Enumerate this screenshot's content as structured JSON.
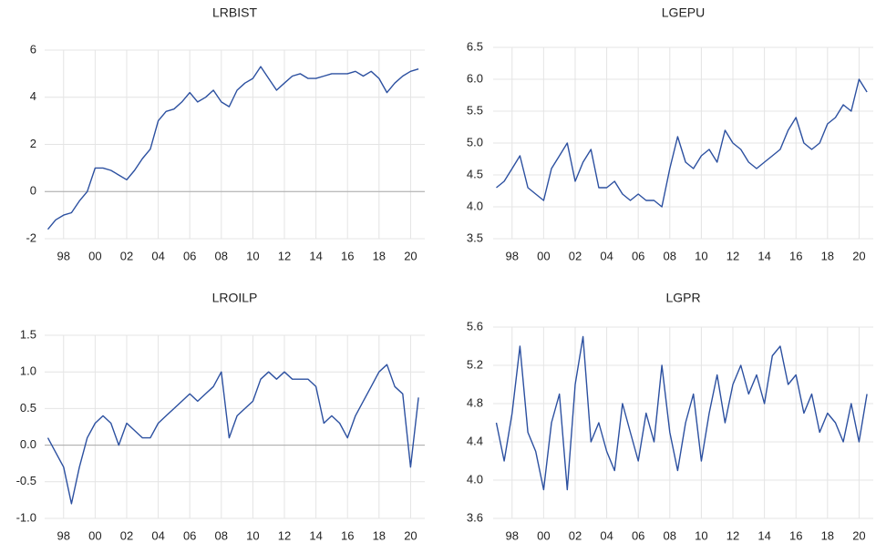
{
  "chart_data": [
    {
      "type": "line",
      "title": "LRBIST",
      "grid": true,
      "xlim": [
        1996.8,
        2020.9
      ],
      "xticks": [
        {
          "value": 1998,
          "label": "98"
        },
        {
          "value": 2000,
          "label": "00"
        },
        {
          "value": 2002,
          "label": "02"
        },
        {
          "value": 2004,
          "label": "04"
        },
        {
          "value": 2006,
          "label": "06"
        },
        {
          "value": 2008,
          "label": "08"
        },
        {
          "value": 2010,
          "label": "10"
        },
        {
          "value": 2012,
          "label": "12"
        },
        {
          "value": 2014,
          "label": "14"
        },
        {
          "value": 2016,
          "label": "16"
        },
        {
          "value": 2018,
          "label": "18"
        },
        {
          "value": 2020,
          "label": "20"
        }
      ],
      "ylim": [
        -2,
        6
      ],
      "yticks": [
        -2,
        0,
        2,
        4,
        6
      ],
      "x": [
        1997.0,
        1997.5,
        1998.0,
        1998.5,
        1999.0,
        1999.5,
        2000.0,
        2000.5,
        2001.0,
        2001.5,
        2002.0,
        2002.5,
        2003.0,
        2003.5,
        2004.0,
        2004.5,
        2005.0,
        2005.5,
        2006.0,
        2006.5,
        2007.0,
        2007.5,
        2008.0,
        2008.5,
        2009.0,
        2009.5,
        2010.0,
        2010.5,
        2011.0,
        2011.5,
        2012.0,
        2012.5,
        2013.0,
        2013.5,
        2014.0,
        2014.5,
        2015.0,
        2015.5,
        2016.0,
        2016.5,
        2017.0,
        2017.5,
        2018.0,
        2018.5,
        2019.0,
        2019.5,
        2020.0,
        2020.5
      ],
      "series": [
        {
          "name": "LRBIST",
          "color": "#2c50a0",
          "values": [
            -1.6,
            -1.2,
            -1.0,
            -0.9,
            -0.4,
            0.0,
            1.0,
            1.0,
            0.9,
            0.7,
            0.5,
            0.9,
            1.4,
            1.8,
            3.0,
            3.4,
            3.5,
            3.8,
            4.2,
            3.8,
            4.0,
            4.3,
            3.8,
            3.6,
            4.3,
            4.6,
            4.8,
            5.3,
            4.8,
            4.3,
            4.6,
            4.9,
            5.0,
            4.8,
            4.8,
            4.9,
            5.0,
            5.0,
            5.0,
            5.1,
            4.9,
            5.1,
            4.8,
            4.2,
            4.6,
            4.9,
            5.1,
            5.2
          ]
        }
      ]
    },
    {
      "type": "line",
      "title": "LGEPU",
      "grid": true,
      "xlim": [
        1996.8,
        2020.9
      ],
      "xticks": [
        {
          "value": 1998,
          "label": "98"
        },
        {
          "value": 2000,
          "label": "00"
        },
        {
          "value": 2002,
          "label": "02"
        },
        {
          "value": 2004,
          "label": "04"
        },
        {
          "value": 2006,
          "label": "06"
        },
        {
          "value": 2008,
          "label": "08"
        },
        {
          "value": 2010,
          "label": "10"
        },
        {
          "value": 2012,
          "label": "12"
        },
        {
          "value": 2014,
          "label": "14"
        },
        {
          "value": 2016,
          "label": "16"
        },
        {
          "value": 2018,
          "label": "18"
        },
        {
          "value": 2020,
          "label": "20"
        }
      ],
      "ylim": [
        3.5,
        6.5
      ],
      "yticks": [
        3.5,
        {
          "value": 4,
          "label": "4.0"
        },
        4.5,
        {
          "value": 5,
          "label": "5.0"
        },
        5.5,
        {
          "value": 6,
          "label": "6.0"
        },
        6.5
      ],
      "x": [
        1997.0,
        1997.5,
        1998.0,
        1998.5,
        1999.0,
        1999.5,
        2000.0,
        2000.5,
        2001.0,
        2001.5,
        2002.0,
        2002.5,
        2003.0,
        2003.5,
        2004.0,
        2004.5,
        2005.0,
        2005.5,
        2006.0,
        2006.5,
        2007.0,
        2007.5,
        2008.0,
        2008.5,
        2009.0,
        2009.5,
        2010.0,
        2010.5,
        2011.0,
        2011.5,
        2012.0,
        2012.5,
        2013.0,
        2013.5,
        2014.0,
        2014.5,
        2015.0,
        2015.5,
        2016.0,
        2016.5,
        2017.0,
        2017.5,
        2018.0,
        2018.5,
        2019.0,
        2019.5,
        2020.0,
        2020.5
      ],
      "series": [
        {
          "name": "LGEPU",
          "color": "#2c50a0",
          "values": [
            4.3,
            4.4,
            4.6,
            4.8,
            4.3,
            4.2,
            4.1,
            4.6,
            4.8,
            5.0,
            4.4,
            4.7,
            4.9,
            4.3,
            4.3,
            4.4,
            4.2,
            4.1,
            4.2,
            4.1,
            4.1,
            4.0,
            4.6,
            5.1,
            4.7,
            4.6,
            4.8,
            4.9,
            4.7,
            5.2,
            5.0,
            4.9,
            4.7,
            4.6,
            4.7,
            4.8,
            4.9,
            5.2,
            5.4,
            5.0,
            4.9,
            5.0,
            5.3,
            5.4,
            5.6,
            5.5,
            6.0,
            5.8
          ]
        }
      ]
    },
    {
      "type": "line",
      "title": "LROILP",
      "grid": true,
      "xlim": [
        1996.8,
        2020.9
      ],
      "xticks": [
        {
          "value": 1998,
          "label": "98"
        },
        {
          "value": 2000,
          "label": "00"
        },
        {
          "value": 2002,
          "label": "02"
        },
        {
          "value": 2004,
          "label": "04"
        },
        {
          "value": 2006,
          "label": "06"
        },
        {
          "value": 2008,
          "label": "08"
        },
        {
          "value": 2010,
          "label": "10"
        },
        {
          "value": 2012,
          "label": "12"
        },
        {
          "value": 2014,
          "label": "14"
        },
        {
          "value": 2016,
          "label": "16"
        },
        {
          "value": 2018,
          "label": "18"
        },
        {
          "value": 2020,
          "label": "20"
        }
      ],
      "ylim": [
        -1,
        1.5
      ],
      "yticks": [
        {
          "value": -1,
          "label": "-1.0"
        },
        -0.5,
        {
          "value": 0,
          "label": "0.0"
        },
        0.5,
        {
          "value": 1,
          "label": "1.0"
        },
        1.5
      ],
      "x": [
        1997.0,
        1997.5,
        1998.0,
        1998.5,
        1999.0,
        1999.5,
        2000.0,
        2000.5,
        2001.0,
        2001.5,
        2002.0,
        2002.5,
        2003.0,
        2003.5,
        2004.0,
        2004.5,
        2005.0,
        2005.5,
        2006.0,
        2006.5,
        2007.0,
        2007.5,
        2008.0,
        2008.5,
        2009.0,
        2009.5,
        2010.0,
        2010.5,
        2011.0,
        2011.5,
        2012.0,
        2012.5,
        2013.0,
        2013.5,
        2014.0,
        2014.5,
        2015.0,
        2015.5,
        2016.0,
        2016.5,
        2017.0,
        2017.5,
        2018.0,
        2018.5,
        2019.0,
        2019.5,
        2020.0,
        2020.5
      ],
      "series": [
        {
          "name": "LROILP",
          "color": "#2c50a0",
          "values": [
            0.1,
            -0.1,
            -0.3,
            -0.8,
            -0.3,
            0.1,
            0.3,
            0.4,
            0.3,
            0.0,
            0.3,
            0.2,
            0.1,
            0.1,
            0.3,
            0.4,
            0.5,
            0.6,
            0.7,
            0.6,
            0.7,
            0.8,
            1.0,
            0.1,
            0.4,
            0.5,
            0.6,
            0.9,
            1.0,
            0.9,
            1.0,
            0.9,
            0.9,
            0.9,
            0.8,
            0.3,
            0.4,
            0.3,
            0.1,
            0.4,
            0.6,
            0.8,
            1.0,
            1.1,
            0.8,
            0.7,
            -0.3,
            0.65
          ]
        }
      ]
    },
    {
      "type": "line",
      "title": "LGPR",
      "grid": true,
      "xlim": [
        1996.8,
        2020.9
      ],
      "xticks": [
        {
          "value": 1998,
          "label": "98"
        },
        {
          "value": 2000,
          "label": "00"
        },
        {
          "value": 2002,
          "label": "02"
        },
        {
          "value": 2004,
          "label": "04"
        },
        {
          "value": 2006,
          "label": "06"
        },
        {
          "value": 2008,
          "label": "08"
        },
        {
          "value": 2010,
          "label": "10"
        },
        {
          "value": 2012,
          "label": "12"
        },
        {
          "value": 2014,
          "label": "14"
        },
        {
          "value": 2016,
          "label": "16"
        },
        {
          "value": 2018,
          "label": "18"
        },
        {
          "value": 2020,
          "label": "20"
        }
      ],
      "ylim": [
        3.6,
        5.6
      ],
      "yticks": [
        3.6,
        {
          "value": 4,
          "label": "4.0"
        },
        4.4,
        4.8,
        5.2,
        5.6
      ],
      "x": [
        1997.0,
        1997.5,
        1998.0,
        1998.5,
        1999.0,
        1999.5,
        2000.0,
        2000.5,
        2001.0,
        2001.5,
        2002.0,
        2002.5,
        2003.0,
        2003.5,
        2004.0,
        2004.5,
        2005.0,
        2005.5,
        2006.0,
        2006.5,
        2007.0,
        2007.5,
        2008.0,
        2008.5,
        2009.0,
        2009.5,
        2010.0,
        2010.5,
        2011.0,
        2011.5,
        2012.0,
        2012.5,
        2013.0,
        2013.5,
        2014.0,
        2014.5,
        2015.0,
        2015.5,
        2016.0,
        2016.5,
        2017.0,
        2017.5,
        2018.0,
        2018.5,
        2019.0,
        2019.5,
        2020.0,
        2020.5
      ],
      "series": [
        {
          "name": "LGPR",
          "color": "#2c50a0",
          "values": [
            4.6,
            4.2,
            4.7,
            5.4,
            4.5,
            4.3,
            3.9,
            4.6,
            4.9,
            3.9,
            5.0,
            5.5,
            4.4,
            4.6,
            4.3,
            4.1,
            4.8,
            4.5,
            4.2,
            4.7,
            4.4,
            5.2,
            4.5,
            4.1,
            4.6,
            4.9,
            4.2,
            4.7,
            5.1,
            4.6,
            5.0,
            5.2,
            4.9,
            5.1,
            4.8,
            5.3,
            5.4,
            5.0,
            5.1,
            4.7,
            4.9,
            4.5,
            4.7,
            4.6,
            4.4,
            4.8,
            4.4,
            4.9
          ]
        }
      ]
    }
  ]
}
